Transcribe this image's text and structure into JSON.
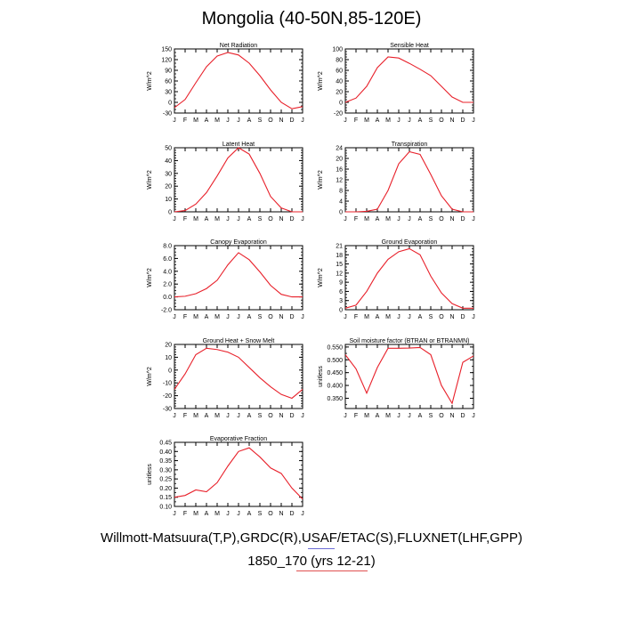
{
  "title": "Mongolia (40-50N,85-120E)",
  "footer": {
    "sources": "Willmott-Matsuura(T,P),GRDC(R),USAF/ETAC(S),FLUXNET(LHF,GPP)",
    "case": "1850_170 (yrs 12-21)"
  },
  "colors": {
    "line": "#e8202a",
    "axis": "#000000",
    "underline_blue": "#6b6bd6",
    "underline_red": "#e05050"
  },
  "chart_data": [
    {
      "type": "line",
      "title": "Net Radiation",
      "ylabel": "W/m^2",
      "categories": [
        "J",
        "F",
        "M",
        "A",
        "M",
        "J",
        "J",
        "A",
        "S",
        "O",
        "N",
        "D",
        "J"
      ],
      "ylim": [
        -30,
        150
      ],
      "yticks": [
        "150",
        "120",
        "90",
        "60",
        "30",
        "0",
        "-30"
      ],
      "ytick_values": [
        150,
        120,
        90,
        60,
        30,
        0,
        -30
      ],
      "minor_step": 10,
      "values": [
        -15,
        8,
        55,
        100,
        130,
        140,
        133,
        110,
        75,
        35,
        0,
        -18,
        -12
      ]
    },
    {
      "type": "line",
      "title": "Sensible Heat",
      "ylabel": "W/m^2",
      "categories": [
        "J",
        "F",
        "M",
        "A",
        "M",
        "J",
        "J",
        "A",
        "S",
        "O",
        "N",
        "D",
        "J"
      ],
      "ylim": [
        -20,
        100
      ],
      "yticks": [
        "100",
        "80",
        "60",
        "40",
        "20",
        "0",
        "-20"
      ],
      "ytick_values": [
        100,
        80,
        60,
        40,
        20,
        0,
        -20
      ],
      "minor_step": 5,
      "values": [
        0,
        8,
        30,
        65,
        85,
        83,
        73,
        62,
        50,
        30,
        10,
        0,
        0
      ]
    },
    {
      "type": "line",
      "title": "Latent Heat",
      "ylabel": "W/m^2",
      "categories": [
        "J",
        "F",
        "M",
        "A",
        "M",
        "J",
        "J",
        "A",
        "S",
        "O",
        "N",
        "D",
        "J"
      ],
      "ylim": [
        0,
        50
      ],
      "yticks": [
        "50",
        "40",
        "30",
        "20",
        "10",
        "0"
      ],
      "ytick_values": [
        50,
        40,
        30,
        20,
        10,
        0
      ],
      "minor_step": 2,
      "values": [
        0,
        1,
        6,
        15,
        28,
        42,
        50,
        45,
        30,
        12,
        3,
        0,
        0
      ]
    },
    {
      "type": "line",
      "title": "Transpiration",
      "ylabel": "W/m^2",
      "categories": [
        "J",
        "F",
        "M",
        "A",
        "M",
        "J",
        "J",
        "A",
        "S",
        "O",
        "N",
        "D",
        "J"
      ],
      "ylim": [
        0,
        24
      ],
      "yticks": [
        "24",
        "20",
        "16",
        "12",
        "8",
        "4",
        "0"
      ],
      "ytick_values": [
        24,
        20,
        16,
        12,
        8,
        4,
        0
      ],
      "minor_step": 1,
      "values": [
        0,
        0,
        0.2,
        1,
        8,
        18,
        22.5,
        21.5,
        14,
        6,
        1,
        0,
        0
      ]
    },
    {
      "type": "line",
      "title": "Canopy Evaporation",
      "ylabel": "W/m^2",
      "categories": [
        "J",
        "F",
        "M",
        "A",
        "M",
        "J",
        "J",
        "A",
        "S",
        "O",
        "N",
        "D",
        "J"
      ],
      "ylim": [
        -2,
        8
      ],
      "yticks": [
        "8.0",
        "6.0",
        "4.0",
        "2.0",
        "0.0",
        "-2.0"
      ],
      "ytick_values": [
        8,
        6,
        4,
        2,
        0,
        -2
      ],
      "minor_step": 0.5,
      "values": [
        0,
        0.1,
        0.5,
        1.3,
        2.6,
        5.0,
        6.9,
        5.8,
        3.9,
        1.8,
        0.4,
        0,
        0
      ]
    },
    {
      "type": "line",
      "title": "Ground Evaporation",
      "ylabel": "W/m^2",
      "categories": [
        "J",
        "F",
        "M",
        "A",
        "M",
        "J",
        "J",
        "A",
        "S",
        "O",
        "N",
        "D",
        "J"
      ],
      "ylim": [
        0,
        21
      ],
      "yticks": [
        "21",
        "18",
        "15",
        "12",
        "9",
        "6",
        "3",
        "0"
      ],
      "ytick_values": [
        21,
        18,
        15,
        12,
        9,
        6,
        3,
        0
      ],
      "minor_step": 1,
      "values": [
        0.5,
        1.5,
        6,
        12,
        16.5,
        19,
        20,
        18,
        11,
        5.5,
        2,
        0.5,
        0.5
      ]
    },
    {
      "type": "line",
      "title": "Ground Heat + Snow Melt",
      "ylabel": "W/m^2",
      "categories": [
        "J",
        "F",
        "M",
        "A",
        "M",
        "J",
        "J",
        "A",
        "S",
        "O",
        "N",
        "D",
        "J"
      ],
      "ylim": [
        -30,
        20
      ],
      "yticks": [
        "20",
        "10",
        "0",
        "-10",
        "-20",
        "-30"
      ],
      "ytick_values": [
        20,
        10,
        0,
        -10,
        -20,
        -30
      ],
      "minor_step": 2,
      "values": [
        -15,
        -3,
        12,
        17,
        16,
        14,
        10,
        2,
        -6,
        -13,
        -19,
        -22,
        -15
      ]
    },
    {
      "type": "line",
      "title": "Soil moisture factor (BTRAN or BTRANMN)",
      "ylabel": "unitless",
      "categories": [
        "J",
        "F",
        "M",
        "A",
        "M",
        "J",
        "J",
        "A",
        "S",
        "O",
        "N",
        "D",
        "J"
      ],
      "ylim": [
        0.31,
        0.56
      ],
      "yticks": [
        "0.550",
        "0.500",
        "0.450",
        "0.400",
        "0.350"
      ],
      "ytick_values": [
        0.55,
        0.5,
        0.45,
        0.4,
        0.35
      ],
      "minor_step": 0.025,
      "values": [
        0.52,
        0.465,
        0.37,
        0.47,
        0.545,
        0.545,
        0.546,
        0.548,
        0.52,
        0.4,
        0.33,
        0.49,
        0.515
      ]
    },
    {
      "type": "line",
      "title": "Evaporative Fraction",
      "ylabel": "unitless",
      "categories": [
        "J",
        "F",
        "M",
        "A",
        "M",
        "J",
        "J",
        "A",
        "S",
        "O",
        "N",
        "D",
        "J"
      ],
      "ylim": [
        0.1,
        0.45
      ],
      "yticks": [
        "0.45",
        "0.40",
        "0.35",
        "0.30",
        "0.25",
        "0.20",
        "0.15",
        "0.10"
      ],
      "ytick_values": [
        0.45,
        0.4,
        0.35,
        0.3,
        0.25,
        0.2,
        0.15,
        0.1
      ],
      "minor_step": 0.025,
      "values": [
        0.15,
        0.16,
        0.19,
        0.18,
        0.23,
        0.32,
        0.4,
        0.42,
        0.37,
        0.31,
        0.28,
        0.2,
        0.14
      ]
    }
  ]
}
